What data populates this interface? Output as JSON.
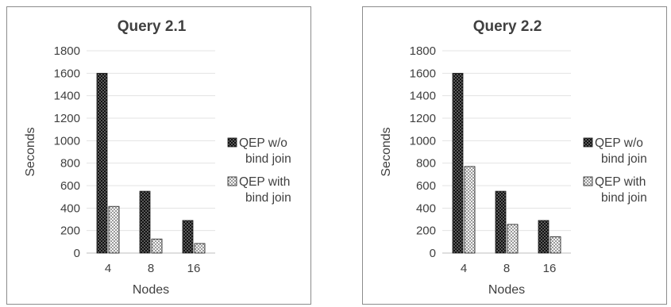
{
  "chart_data": [
    {
      "type": "bar",
      "title": "Query 2.1",
      "xlabel": "Nodes",
      "ylabel": "Seconds",
      "categories": [
        "4",
        "8",
        "16"
      ],
      "ylim": [
        0,
        1800
      ],
      "yticks": [
        0,
        200,
        400,
        600,
        800,
        1000,
        1200,
        1400,
        1600,
        1800
      ],
      "grid": true,
      "legend_position": "right",
      "series": [
        {
          "name": "QEP w/o bind join",
          "values": [
            1600,
            550,
            290
          ],
          "pattern": "dark-checker"
        },
        {
          "name": "QEP with bind join",
          "values": [
            415,
            125,
            85
          ],
          "pattern": "light-checker"
        }
      ]
    },
    {
      "type": "bar",
      "title": "Query 2.2",
      "xlabel": "Nodes",
      "ylabel": "Seconds",
      "categories": [
        "4",
        "8",
        "16"
      ],
      "ylim": [
        0,
        1800
      ],
      "yticks": [
        0,
        200,
        400,
        600,
        800,
        1000,
        1200,
        1400,
        1600,
        1800
      ],
      "grid": true,
      "legend_position": "right",
      "series": [
        {
          "name": "QEP w/o bind join",
          "values": [
            1600,
            550,
            290
          ],
          "pattern": "dark-checker"
        },
        {
          "name": "QEP with bind join",
          "values": [
            770,
            255,
            145
          ],
          "pattern": "light-checker"
        }
      ]
    }
  ]
}
